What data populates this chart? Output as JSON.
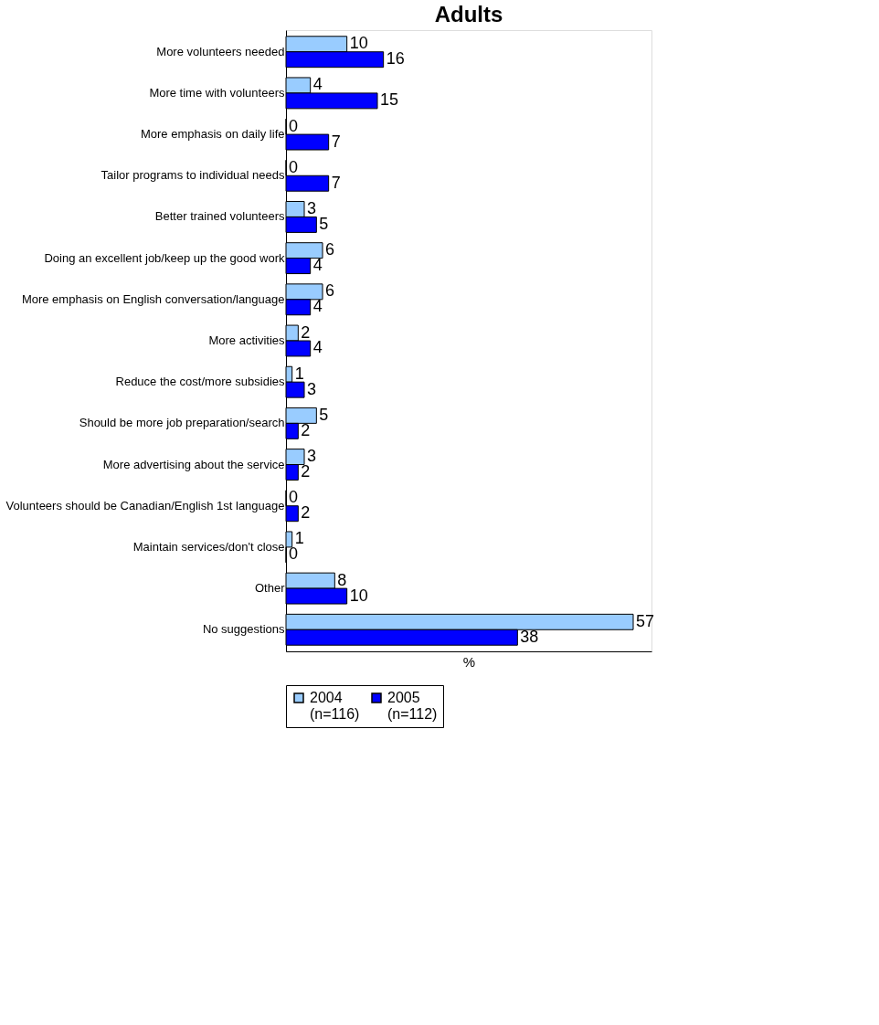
{
  "chart_data": {
    "type": "bar",
    "orientation": "horizontal",
    "title": "Adults",
    "xlabel": "%",
    "categories": [
      "More volunteers needed",
      "More time with volunteers",
      "More emphasis on daily life",
      "Tailor programs to individual needs",
      "Better trained volunteers",
      "Doing an excellent job/keep up the good work",
      "More emphasis on English conversation/language",
      "More activities",
      "Reduce the cost/more subsidies",
      "Should be more job preparation/search",
      "More advertising about the service",
      "Volunteers should be Canadian/English 1st language",
      "Maintain services/don't close",
      "Other",
      "No suggestions"
    ],
    "series": [
      {
        "name": "2004\n(n=116)",
        "color": "#99ccff",
        "values": [
          10,
          4,
          0,
          0,
          3,
          6,
          6,
          2,
          1,
          5,
          3,
          0,
          1,
          8,
          57
        ]
      },
      {
        "name": "2005\n(n=112)",
        "color": "#0000ff",
        "values": [
          16,
          15,
          7,
          7,
          5,
          4,
          4,
          4,
          3,
          2,
          2,
          2,
          0,
          10,
          38
        ]
      }
    ],
    "xlim": [
      0,
      60
    ],
    "data_labels": true,
    "grid": false,
    "legend": "bottom",
    "tick_labels": "y"
  }
}
